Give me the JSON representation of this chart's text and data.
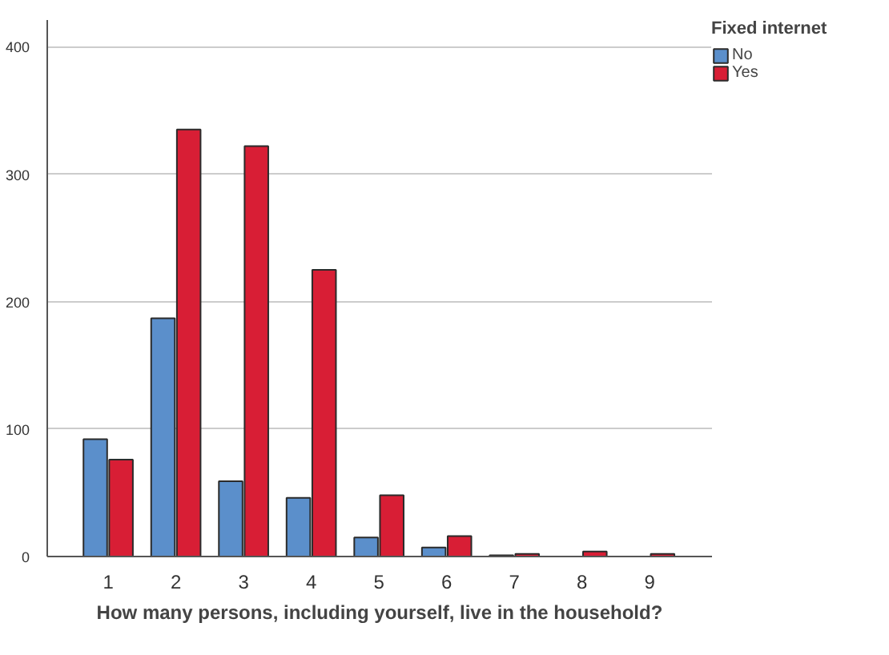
{
  "chart_data": {
    "type": "bar",
    "xlabel": "How many persons, including yourself, live in the household?",
    "legend_title": "Fixed internet",
    "categories": [
      "1",
      "2",
      "3",
      "4",
      "5",
      "6",
      "7",
      "8",
      "9"
    ],
    "series": [
      {
        "name": "No",
        "color": "#5b8fcb",
        "values": [
          92,
          187,
          59,
          46,
          15,
          7,
          1,
          null,
          null
        ]
      },
      {
        "name": "Yes",
        "color": "#d81e35",
        "values": [
          76,
          335,
          322,
          225,
          48,
          16,
          2,
          4,
          2
        ]
      }
    ],
    "ylim": [
      0,
      421
    ],
    "yticks": [
      0,
      100,
      200,
      300,
      400
    ],
    "grid": "y",
    "legend": "top right"
  }
}
